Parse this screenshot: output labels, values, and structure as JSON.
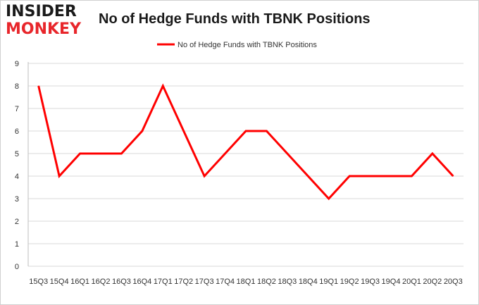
{
  "brand": {
    "logo_line1": "INSIDER",
    "logo_line2": "MONKEY",
    "logo_dark": "#1a1a1a",
    "logo_red": "#e8262b"
  },
  "chart_data": {
    "type": "line",
    "title": "No of Hedge Funds with TBNK Positions",
    "xlabel": "",
    "ylabel": "",
    "ylim": [
      0,
      9
    ],
    "yticks": [
      0,
      1,
      2,
      3,
      4,
      5,
      6,
      7,
      8,
      9
    ],
    "grid": true,
    "legend_position": "top-center",
    "categories": [
      "15Q3",
      "15Q4",
      "16Q1",
      "16Q2",
      "16Q3",
      "16Q4",
      "17Q1",
      "17Q2",
      "17Q3",
      "17Q4",
      "18Q1",
      "18Q2",
      "18Q3",
      "18Q4",
      "19Q1",
      "19Q2",
      "19Q3",
      "19Q4",
      "20Q1",
      "20Q2",
      "20Q3"
    ],
    "series": [
      {
        "name": "No of Hedge Funds with TBNK Positions",
        "color": "#ff0000",
        "values": [
          8,
          4,
          5,
          5,
          5,
          6,
          8,
          6,
          4,
          5,
          6,
          6,
          5,
          4,
          3,
          4,
          4,
          4,
          4,
          5,
          4
        ]
      }
    ]
  }
}
